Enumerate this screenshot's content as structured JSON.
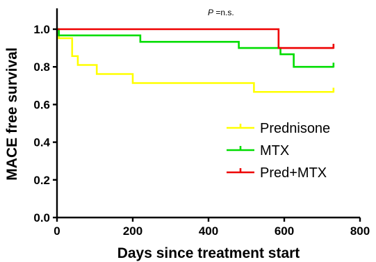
{
  "chart_data": {
    "type": "line",
    "subtype": "kaplan-meier step",
    "title": "",
    "annotation": {
      "prefix": "P",
      "text": " =n.s."
    },
    "xlabel": "Days since treatment start",
    "ylabel": "MACE free survival",
    "xlim": [
      0,
      800
    ],
    "ylim": [
      0.0,
      1.0
    ],
    "xticks": [
      0,
      200,
      400,
      600,
      800
    ],
    "yticks": [
      0.0,
      0.2,
      0.4,
      0.6,
      0.8,
      1.0
    ],
    "xtick_labels": [
      "0",
      "200",
      "400",
      "600",
      "800"
    ],
    "ytick_labels": [
      "0.0",
      "0.2",
      "0.4",
      "0.6",
      "0.8",
      "1.0"
    ],
    "grid": false,
    "legend_position": "bottom-right",
    "series": [
      {
        "name": "Prednisone",
        "color": "#ffff00",
        "steps": [
          [
            0,
            1.0
          ],
          [
            5,
            0.952
          ],
          [
            40,
            0.857
          ],
          [
            55,
            0.81
          ],
          [
            105,
            0.762
          ],
          [
            200,
            0.714
          ],
          [
            520,
            0.667
          ],
          [
            730,
            0.667
          ]
        ],
        "end_tick": [
          730,
          0.667
        ]
      },
      {
        "name": "MTX",
        "color": "#00dd00",
        "steps": [
          [
            0,
            1.0
          ],
          [
            5,
            0.967
          ],
          [
            220,
            0.933
          ],
          [
            480,
            0.9
          ],
          [
            590,
            0.867
          ],
          [
            625,
            0.8
          ],
          [
            730,
            0.8
          ]
        ],
        "end_tick": [
          730,
          0.8
        ]
      },
      {
        "name": "Pred+MTX",
        "color": "#ee0000",
        "steps": [
          [
            0,
            1.0
          ],
          [
            585,
            0.9
          ],
          [
            730,
            0.9
          ]
        ],
        "end_tick": [
          730,
          0.9
        ]
      }
    ]
  }
}
